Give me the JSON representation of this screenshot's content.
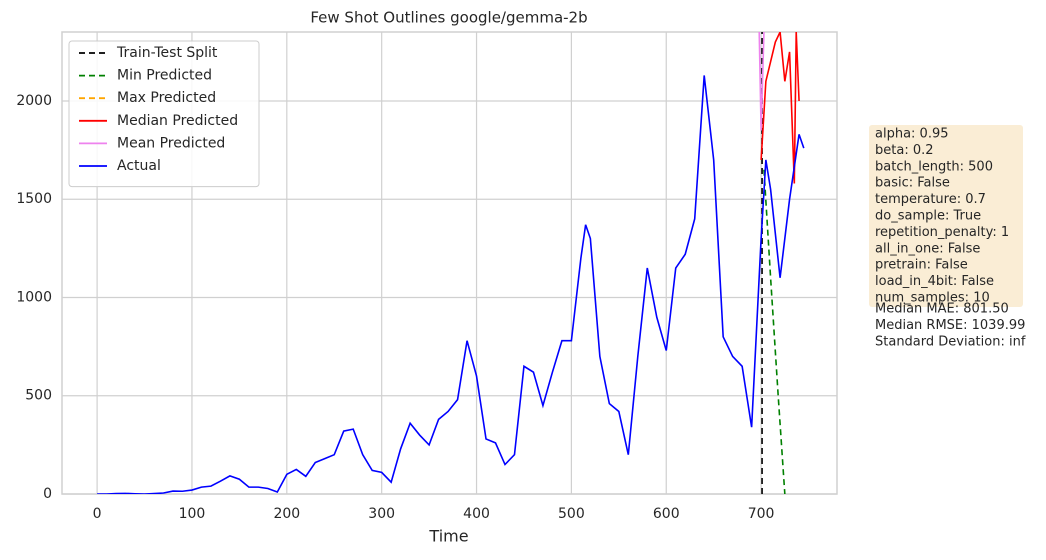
{
  "chart_data": {
    "type": "line",
    "title": "Few Shot Outlines google/gemma-2b",
    "x_label": "Time",
    "xlim": [
      -37,
      780
    ],
    "ylim": [
      0,
      2351
    ],
    "xticks": [
      0,
      100,
      200,
      300,
      400,
      500,
      600,
      700
    ],
    "yticks": [
      0,
      500,
      1000,
      1500,
      2000
    ],
    "grid": true,
    "legend": "upper-left",
    "series": [
      {
        "name": "Train-Test Split",
        "color": "#000000",
        "dash": true,
        "x": [
          701,
          701
        ],
        "values": [
          0,
          2351
        ]
      },
      {
        "name": "Min Predicted",
        "color": "#008000",
        "dash": true,
        "x": [
          703,
          710,
          718,
          725
        ],
        "values": [
          1650,
          1100,
          500,
          0
        ]
      },
      {
        "name": "Max Predicted",
        "color": "#ffa500",
        "dash": true,
        "x": [],
        "values": []
      },
      {
        "name": "Median Predicted",
        "color": "#ff0000",
        "dash": false,
        "x": [
          700,
          705,
          710,
          715,
          720,
          725,
          730,
          735,
          737,
          740
        ],
        "values": [
          1700,
          2100,
          2200,
          2300,
          2351,
          2100,
          2250,
          1580,
          2351,
          2000
        ]
      },
      {
        "name": "Mean Predicted",
        "color": "#ee82ee",
        "dash": false,
        "x": [
          698,
          700,
          703
        ],
        "values": [
          2351,
          1850,
          2351
        ]
      },
      {
        "name": "Actual",
        "color": "#0000ff",
        "dash": false,
        "x": [
          0,
          10,
          20,
          30,
          40,
          50,
          60,
          70,
          80,
          90,
          100,
          110,
          120,
          130,
          140,
          150,
          160,
          170,
          180,
          190,
          200,
          210,
          220,
          230,
          240,
          250,
          260,
          270,
          280,
          290,
          300,
          310,
          320,
          330,
          340,
          350,
          360,
          370,
          380,
          390,
          400,
          410,
          420,
          430,
          440,
          450,
          460,
          470,
          480,
          490,
          500,
          510,
          515,
          520,
          530,
          540,
          550,
          560,
          570,
          580,
          590,
          600,
          610,
          620,
          630,
          640,
          650,
          660,
          670,
          680,
          690,
          700,
          705,
          710,
          720,
          730,
          740,
          745
        ],
        "values": [
          0,
          0,
          2,
          3,
          1,
          0,
          2,
          5,
          15,
          14,
          20,
          35,
          40,
          65,
          92,
          75,
          35,
          35,
          28,
          10,
          100,
          125,
          90,
          160,
          180,
          200,
          320,
          330,
          200,
          120,
          110,
          60,
          230,
          360,
          300,
          250,
          380,
          420,
          480,
          780,
          600,
          280,
          260,
          150,
          200,
          650,
          620,
          450,
          620,
          780,
          780,
          1200,
          1370,
          1300,
          700,
          460,
          420,
          200,
          700,
          1150,
          900,
          730,
          1150,
          1220,
          1400,
          2130,
          1700,
          800,
          700,
          650,
          340,
          1300,
          1700,
          1550,
          1100,
          1500,
          1830,
          1760
        ]
      }
    ],
    "annotation": {
      "settings": [
        "alpha: 0.95",
        "beta: 0.2",
        "batch_length: 500",
        "basic: False",
        "temperature: 0.7",
        "do_sample: True",
        "repetition_penalty: 1",
        "all_in_one: False",
        "pretrain: False",
        "load_in_4bit: False",
        "num_samples: 10"
      ],
      "metrics": [
        "Median MAE: 801.50",
        "Median RMSE: 1039.99",
        "Standard Deviation: inf"
      ]
    }
  }
}
